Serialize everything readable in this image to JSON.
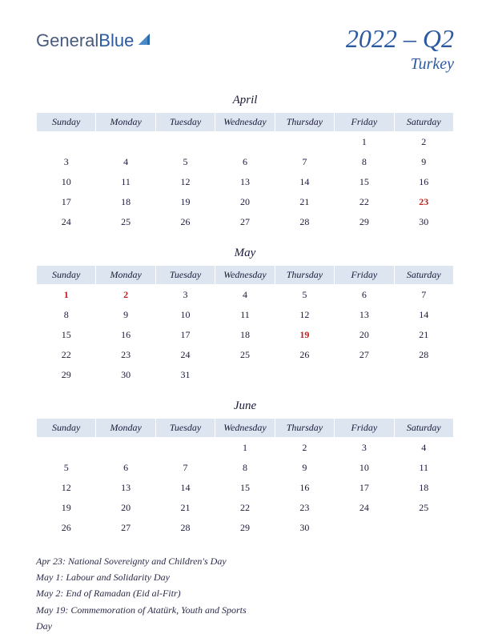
{
  "logo": {
    "text1": "General",
    "text2": "Blue"
  },
  "header": {
    "title": "2022 – Q2",
    "country": "Turkey"
  },
  "colors": {
    "headerBlue": "#2b5aa0",
    "dayHeaderBg": "#dde5f0",
    "text": "#1a1a3a",
    "holiday": "#c02020"
  },
  "dayNames": [
    "Sunday",
    "Monday",
    "Tuesday",
    "Wednesday",
    "Thursday",
    "Friday",
    "Saturday"
  ],
  "months": [
    {
      "name": "April",
      "weeks": [
        [
          "",
          "",
          "",
          "",
          "",
          "1",
          "2"
        ],
        [
          "3",
          "4",
          "5",
          "6",
          "7",
          "8",
          "9"
        ],
        [
          "10",
          "11",
          "12",
          "13",
          "14",
          "15",
          "16"
        ],
        [
          "17",
          "18",
          "19",
          "20",
          "21",
          "22",
          "23"
        ],
        [
          "24",
          "25",
          "26",
          "27",
          "28",
          "29",
          "30"
        ]
      ],
      "holidays": [
        "23"
      ]
    },
    {
      "name": "May",
      "weeks": [
        [
          "1",
          "2",
          "3",
          "4",
          "5",
          "6",
          "7"
        ],
        [
          "8",
          "9",
          "10",
          "11",
          "12",
          "13",
          "14"
        ],
        [
          "15",
          "16",
          "17",
          "18",
          "19",
          "20",
          "21"
        ],
        [
          "22",
          "23",
          "24",
          "25",
          "26",
          "27",
          "28"
        ],
        [
          "29",
          "30",
          "31",
          "",
          "",
          "",
          ""
        ]
      ],
      "holidays": [
        "1",
        "2",
        "19"
      ]
    },
    {
      "name": "June",
      "weeks": [
        [
          "",
          "",
          "",
          "1",
          "2",
          "3",
          "4"
        ],
        [
          "5",
          "6",
          "7",
          "8",
          "9",
          "10",
          "11"
        ],
        [
          "12",
          "13",
          "14",
          "15",
          "16",
          "17",
          "18"
        ],
        [
          "19",
          "20",
          "21",
          "22",
          "23",
          "24",
          "25"
        ],
        [
          "26",
          "27",
          "28",
          "29",
          "30",
          "",
          ""
        ]
      ],
      "holidays": []
    }
  ],
  "holidayList": [
    "Apr 23: National Sovereignty and Children's Day",
    "May 1: Labour and Solidarity Day",
    "May 2: End of Ramadan (Eid al-Fitr)",
    "May 19: Commemoration of Atatürk, Youth and Sports",
    "Day"
  ]
}
